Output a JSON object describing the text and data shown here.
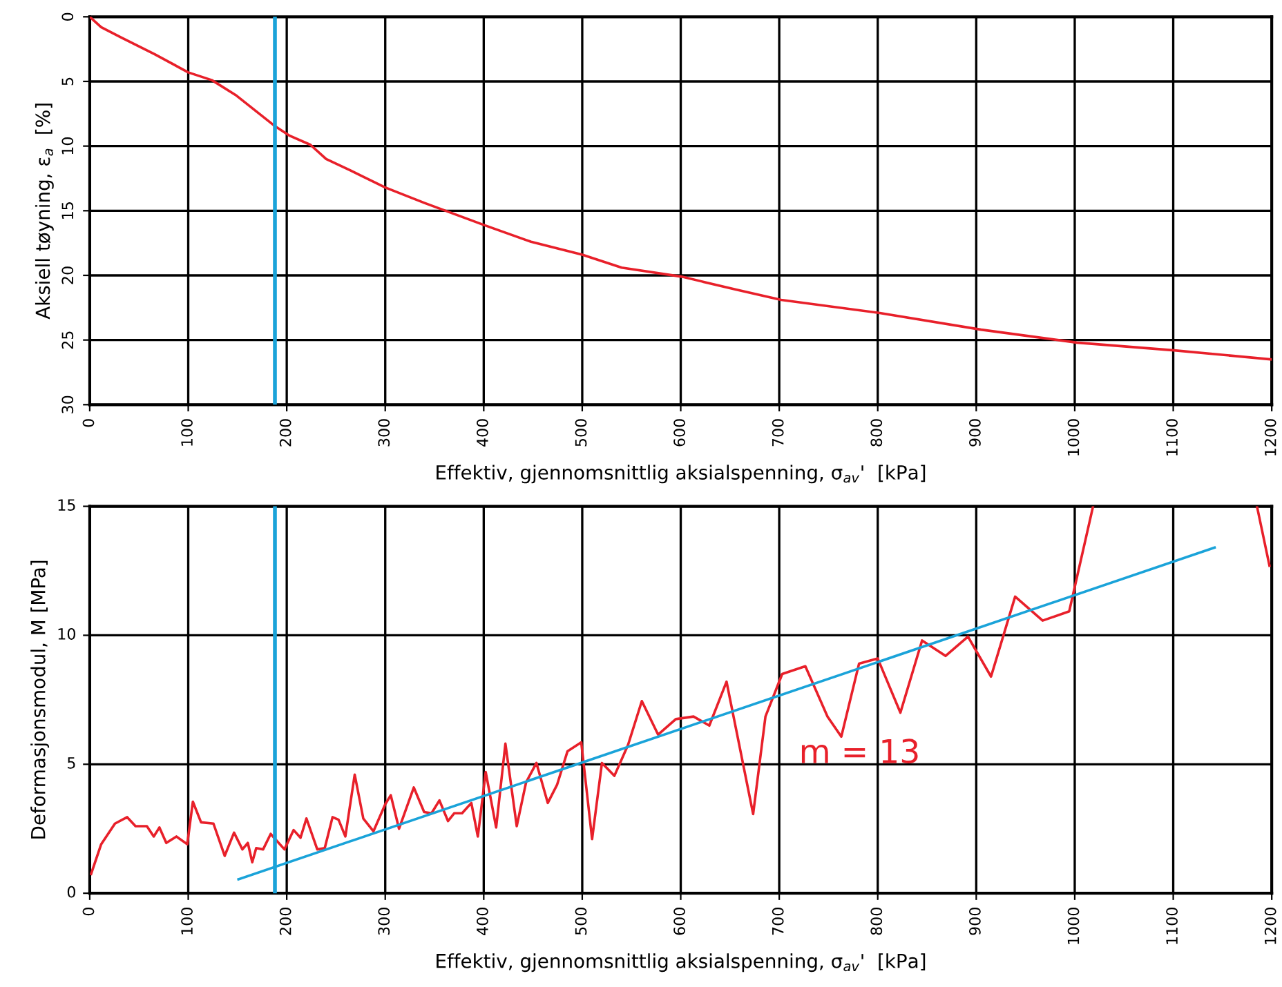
{
  "chart_data": [
    {
      "type": "line",
      "xlabel": "Effektiv, gjennomsnittlig aksialspenning, σ$_{av}$'  [kPa]",
      "ylabel": "Aksiell tøyning, ε$_{a}$  [%]",
      "xlim": [
        0,
        1200
      ],
      "xticks": [
        0,
        100,
        200,
        300,
        400,
        500,
        600,
        700,
        800,
        900,
        1000,
        1100,
        1200
      ],
      "ylim": [
        30,
        0
      ],
      "yticks": [
        0,
        5,
        10,
        15,
        20,
        25,
        30
      ],
      "grid": true,
      "marker": "none",
      "line_style": "solid",
      "series": [
        {
          "color": "#e8202a",
          "x": [
            0,
            11.6,
            32,
            66,
            100,
            124,
            149,
            187,
            203,
            224,
            240,
            265,
            300,
            340,
            400,
            448,
            500,
            540,
            601,
            656,
            702,
            801,
            905,
            1002,
            1101,
            1200
          ],
          "values": [
            0,
            0.8,
            1.6,
            2.9,
            4.3,
            4.9,
            6.1,
            8.4,
            9.2,
            9.9,
            11,
            11.9,
            13.2,
            14.4,
            16.1,
            17.4,
            18.4,
            19.4,
            20.1,
            21.1,
            21.9,
            22.9,
            24.2,
            25.2,
            25.8,
            26.5
          ]
        }
      ],
      "ref_lines": [
        {
          "axis": "x",
          "value": 188,
          "color": "#1aa3d9"
        }
      ]
    },
    {
      "type": "line",
      "xlabel": "Effektiv, gjennomsnittlig aksialspenning, σ$_{av}$'  [kPa]",
      "ylabel": "Deformasjonsmodul, M [MPa]",
      "xlim": [
        0,
        1200
      ],
      "xticks": [
        0,
        100,
        200,
        300,
        400,
        500,
        600,
        700,
        800,
        900,
        1000,
        1100,
        1200
      ],
      "ylim": [
        0,
        15
      ],
      "yticks": [
        0,
        5,
        10,
        15
      ],
      "grid": true,
      "marker": "none",
      "line_style": "solid",
      "series": [
        {
          "color": "#e8202a",
          "x": [
            1.4,
            11.6,
            25.6,
            38,
            46.5,
            58,
            65,
            70.7,
            77.7,
            88,
            99,
            104.7,
            113,
            125.6,
            137,
            146.5,
            155,
            160.5,
            165,
            169,
            176,
            183.7,
            197.7,
            207,
            214,
            220,
            231,
            238.6,
            246.5,
            252.6,
            259.5,
            269,
            277.7,
            288,
            300,
            305.6,
            314,
            329,
            339.5,
            347,
            355,
            363.7,
            370,
            378,
            387.4,
            394,
            402,
            412.6,
            422,
            433.5,
            443,
            453.5,
            465,
            474.4,
            485,
            499,
            510,
            520,
            532.6,
            546.5,
            560.5,
            577,
            595,
            613,
            629,
            646.5,
            673.5,
            686,
            703,
            726.5,
            749,
            763,
            781,
            800,
            823,
            845,
            868.8,
            891.6,
            915,
            939.5,
            967.4,
            994.4,
            1018.6,
            1100,
            1185,
            1197.7
          ],
          "values": [
            0.75,
            1.9,
            2.7,
            2.95,
            2.6,
            2.6,
            2.2,
            2.55,
            1.95,
            2.2,
            1.9,
            3.55,
            2.75,
            2.7,
            1.45,
            2.35,
            1.7,
            1.95,
            1.2,
            1.75,
            1.7,
            2.3,
            1.7,
            2.45,
            2.15,
            2.9,
            1.7,
            1.75,
            2.95,
            2.85,
            2.2,
            4.6,
            2.9,
            2.4,
            3.45,
            3.8,
            2.5,
            4.1,
            3.15,
            3.1,
            3.6,
            2.8,
            3.1,
            3.1,
            3.5,
            2.2,
            4.7,
            2.55,
            5.8,
            2.6,
            4.3,
            5.05,
            3.5,
            4.2,
            5.5,
            5.85,
            2.1,
            5.05,
            4.55,
            5.75,
            7.45,
            6.15,
            6.75,
            6.85,
            6.5,
            8.2,
            3.07,
            6.85,
            8.5,
            8.8,
            6.85,
            6.07,
            8.9,
            9.1,
            7.0,
            9.8,
            9.2,
            9.95,
            8.4,
            11.5,
            10.57,
            10.93,
            15,
            null,
            15,
            12.7
          ]
        },
        {
          "type": "line",
          "color": "#1aa3d9",
          "x": [
            151,
            1142
          ],
          "values": [
            0.54,
            13.4
          ]
        }
      ],
      "ref_lines": [
        {
          "axis": "x",
          "value": 188,
          "color": "#1aa3d9"
        }
      ],
      "annotations": [
        "m = 13"
      ]
    }
  ]
}
